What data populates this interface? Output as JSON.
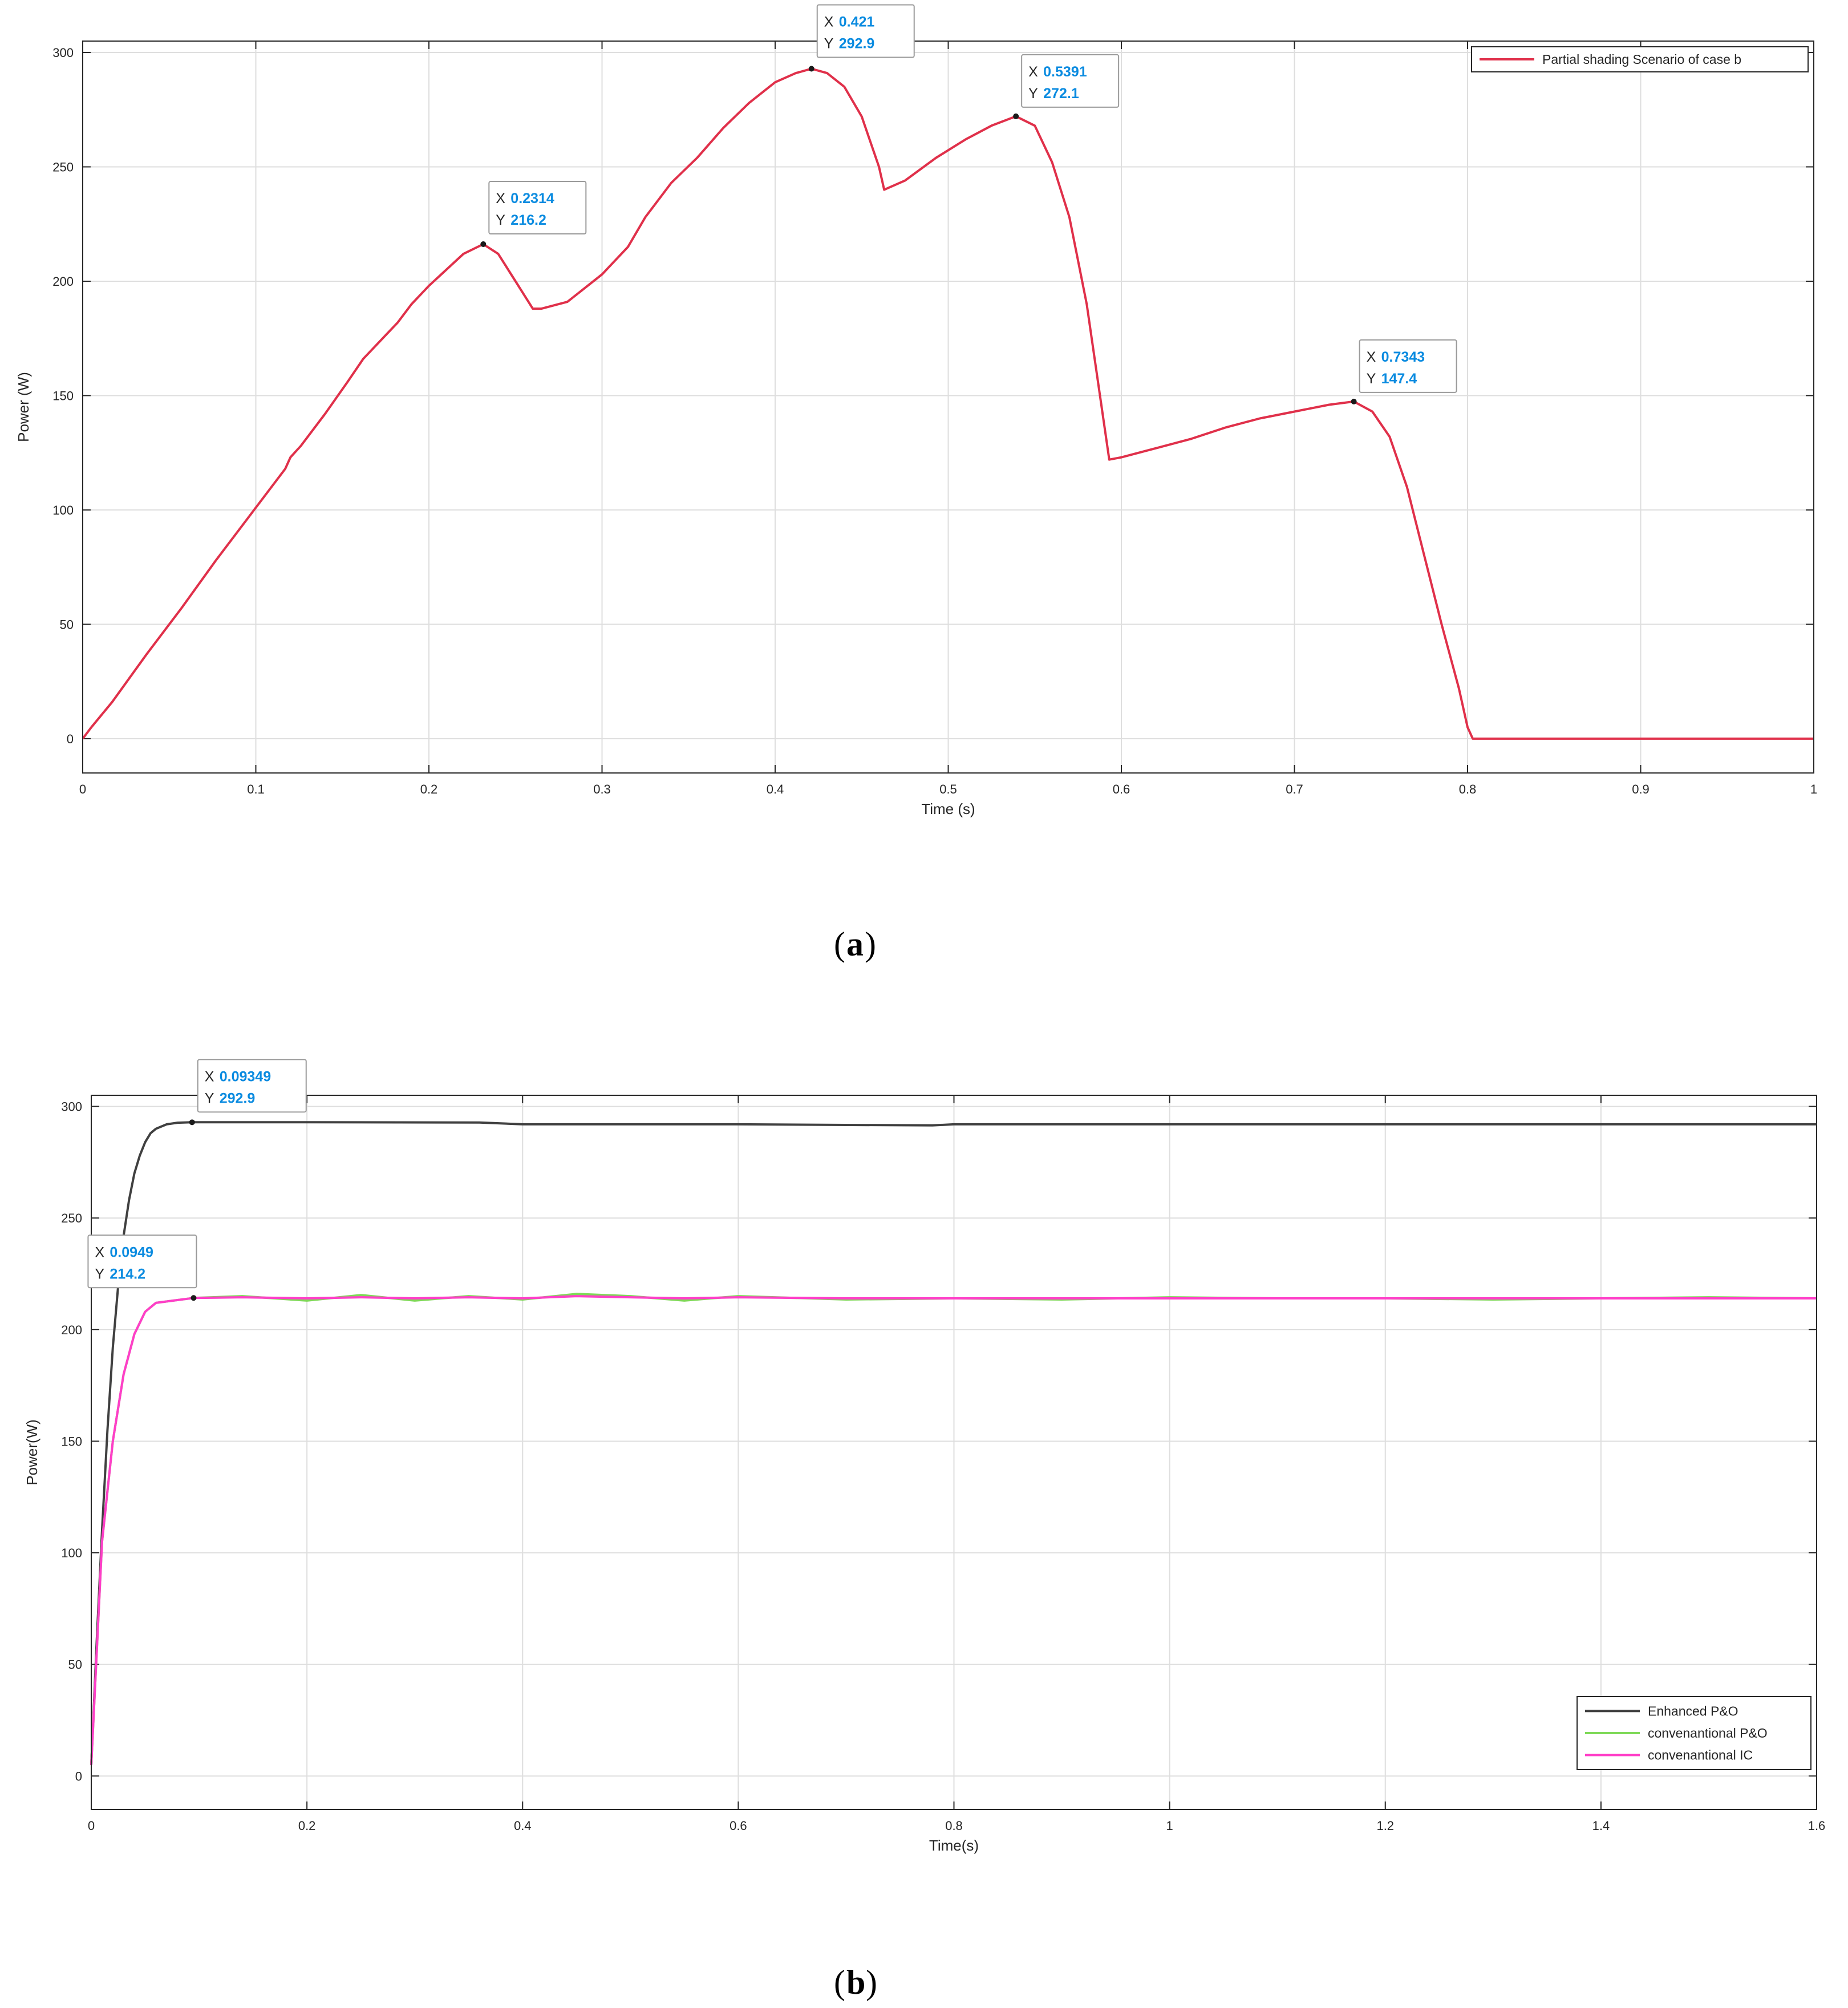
{
  "chart_data": [
    {
      "panel_label": "a",
      "type": "line",
      "xlabel": "Time (s)",
      "ylabel": "Power (W)",
      "xlim": [
        0,
        1
      ],
      "ylim": [
        -15,
        305
      ],
      "xticks": [
        0,
        0.1,
        0.2,
        0.3,
        0.4,
        0.5,
        0.6,
        0.7,
        0.8,
        0.9,
        1
      ],
      "xtick_labels": [
        "0",
        "0.1",
        "0.2",
        "0.3",
        "0.4",
        "0.5",
        "0.6",
        "0.7",
        "0.8",
        "0.9",
        "1"
      ],
      "yticks": [
        0,
        50,
        100,
        150,
        200,
        250,
        300
      ],
      "ytick_labels": [
        "0",
        "50",
        "100",
        "150",
        "200",
        "250",
        "300"
      ],
      "grid": true,
      "legend_position": "top-right",
      "series": [
        {
          "name": "Partial shading Scenario of case b",
          "color": "#e0304a",
          "x": [
            0,
            0.005,
            0.005,
            0.017,
            0.017,
            0.037,
            0.037,
            0.057,
            0.057,
            0.077,
            0.077,
            0.097,
            0.097,
            0.117,
            0.117,
            0.12,
            0.12,
            0.126,
            0.126,
            0.14,
            0.14,
            0.153,
            0.153,
            0.162,
            0.162,
            0.172,
            0.172,
            0.182,
            0.182,
            0.19,
            0.19,
            0.2,
            0.2,
            0.21,
            0.21,
            0.22,
            0.22,
            0.2314,
            0.24,
            0.25,
            0.26,
            0.265,
            0.265,
            0.28,
            0.28,
            0.3,
            0.3,
            0.315,
            0.315,
            0.325,
            0.325,
            0.34,
            0.34,
            0.355,
            0.355,
            0.37,
            0.37,
            0.385,
            0.385,
            0.4,
            0.4,
            0.412,
            0.421,
            0.43,
            0.44,
            0.45,
            0.46,
            0.463,
            0.463,
            0.475,
            0.475,
            0.493,
            0.493,
            0.51,
            0.51,
            0.525,
            0.525,
            0.5391,
            0.55,
            0.56,
            0.57,
            0.58,
            0.593,
            0.6,
            0.62,
            0.64,
            0.66,
            0.68,
            0.7,
            0.72,
            0.7343,
            0.745,
            0.755,
            0.765,
            0.775,
            0.785,
            0.795,
            0.8,
            0.803,
            0.806,
            0.85,
            0.9,
            0.95,
            1.0
          ],
          "y": [
            0,
            5,
            5,
            16,
            16,
            37,
            37,
            57,
            57,
            78,
            78,
            98,
            98,
            118,
            118,
            123,
            123,
            128,
            128,
            142,
            142,
            156,
            156,
            166,
            166,
            174,
            174,
            182,
            182,
            190,
            190,
            198,
            198,
            205,
            205,
            212,
            212,
            216.2,
            212,
            200,
            188,
            188,
            188,
            191,
            191,
            203,
            203,
            215,
            215,
            228,
            228,
            243,
            243,
            254,
            254,
            267,
            267,
            278,
            278,
            287,
            287,
            291,
            292.9,
            291,
            285,
            272,
            250,
            240,
            240,
            244,
            244,
            254,
            254,
            262,
            262,
            268,
            268,
            272.1,
            268,
            252,
            228,
            190,
            122,
            123,
            127,
            131,
            136,
            140,
            143,
            146,
            147.4,
            143,
            132,
            110,
            80,
            50,
            22,
            5,
            0,
            0,
            0,
            0,
            0,
            0
          ]
        }
      ],
      "annotations": [
        {
          "x_prefix": "X",
          "x_value": "0.2314",
          "y_prefix": "Y",
          "y_value": "216.2",
          "x": 0.2314,
          "y": 216.2
        },
        {
          "x_prefix": "X",
          "x_value": "0.421",
          "y_prefix": "Y",
          "y_value": "292.9",
          "x": 0.421,
          "y": 292.9
        },
        {
          "x_prefix": "X",
          "x_value": "0.5391",
          "y_prefix": "Y",
          "y_value": "272.1",
          "x": 0.5391,
          "y": 272.1
        },
        {
          "x_prefix": "X",
          "x_value": "0.7343",
          "y_prefix": "Y",
          "y_value": "147.4",
          "x": 0.7343,
          "y": 147.4
        }
      ]
    },
    {
      "panel_label": "b",
      "type": "line",
      "xlabel": "Time(s)",
      "ylabel": "Power(W)",
      "xlim": [
        0,
        1.6
      ],
      "ylim": [
        -15,
        305
      ],
      "xticks": [
        0,
        0.2,
        0.4,
        0.6,
        0.8,
        1,
        1.2,
        1.4,
        1.6
      ],
      "xtick_labels": [
        "0",
        "0.2",
        "0.4",
        "0.6",
        "0.8",
        "1",
        "1.2",
        "1.4",
        "1.6"
      ],
      "yticks": [
        0,
        50,
        100,
        150,
        200,
        250,
        300
      ],
      "ytick_labels": [
        "0",
        "50",
        "100",
        "150",
        "200",
        "250",
        "300"
      ],
      "grid": true,
      "legend_position": "bottom-right",
      "series": [
        {
          "name": "Enhanced P&O",
          "color": "#404040",
          "x": [
            0,
            0.005,
            0.01,
            0.015,
            0.02,
            0.025,
            0.03,
            0.035,
            0.04,
            0.045,
            0.05,
            0.055,
            0.06,
            0.07,
            0.08,
            0.09349,
            0.2,
            0.36,
            0.4,
            0.6,
            0.78,
            0.8,
            1.0,
            1.2,
            1.4,
            1.6
          ],
          "y": [
            5,
            60,
            110,
            155,
            192,
            220,
            242,
            258,
            270,
            278,
            284,
            288,
            290,
            292,
            292.7,
            292.9,
            292.9,
            292.8,
            292,
            292,
            291.5,
            292,
            292,
            292,
            292,
            292
          ]
        },
        {
          "name": "convenantional P&O",
          "color": "#7ed957",
          "x": [
            0,
            0.005,
            0.01,
            0.02,
            0.03,
            0.04,
            0.05,
            0.06,
            0.0949,
            0.14,
            0.2,
            0.25,
            0.3,
            0.35,
            0.4,
            0.45,
            0.5,
            0.55,
            0.6,
            0.7,
            0.8,
            0.9,
            1.0,
            1.1,
            1.2,
            1.3,
            1.4,
            1.5,
            1.6
          ],
          "y": [
            5,
            55,
            105,
            150,
            180,
            198,
            208,
            212,
            214.2,
            215,
            213,
            215.5,
            213,
            215,
            213.5,
            216,
            215,
            213,
            215,
            213.5,
            214,
            213.5,
            214.5,
            214,
            214,
            213.5,
            214,
            214.5,
            214
          ]
        },
        {
          "name": "convenantional IC",
          "color": "#ff3ec8",
          "x": [
            0,
            0.005,
            0.01,
            0.02,
            0.03,
            0.04,
            0.05,
            0.06,
            0.0949,
            0.14,
            0.2,
            0.25,
            0.3,
            0.35,
            0.4,
            0.45,
            0.5,
            0.55,
            0.6,
            0.7,
            0.8,
            0.9,
            1.0,
            1.1,
            1.2,
            1.3,
            1.4,
            1.5,
            1.6
          ],
          "y": [
            5,
            55,
            105,
            150,
            180,
            198,
            208,
            212,
            214.2,
            214.5,
            214,
            214.5,
            214,
            214.5,
            214,
            215,
            214.5,
            214,
            214.5,
            214,
            214,
            214,
            214,
            214,
            214,
            214,
            214,
            214,
            214
          ]
        }
      ],
      "annotations": [
        {
          "x_prefix": "X",
          "x_value": "0.09349",
          "y_prefix": "Y",
          "y_value": "292.9",
          "x": 0.09349,
          "y": 292.9
        },
        {
          "x_prefix": "X",
          "x_value": "0.0949",
          "y_prefix": "Y",
          "y_value": "214.2",
          "x": 0.0949,
          "y": 214.2
        }
      ]
    }
  ]
}
